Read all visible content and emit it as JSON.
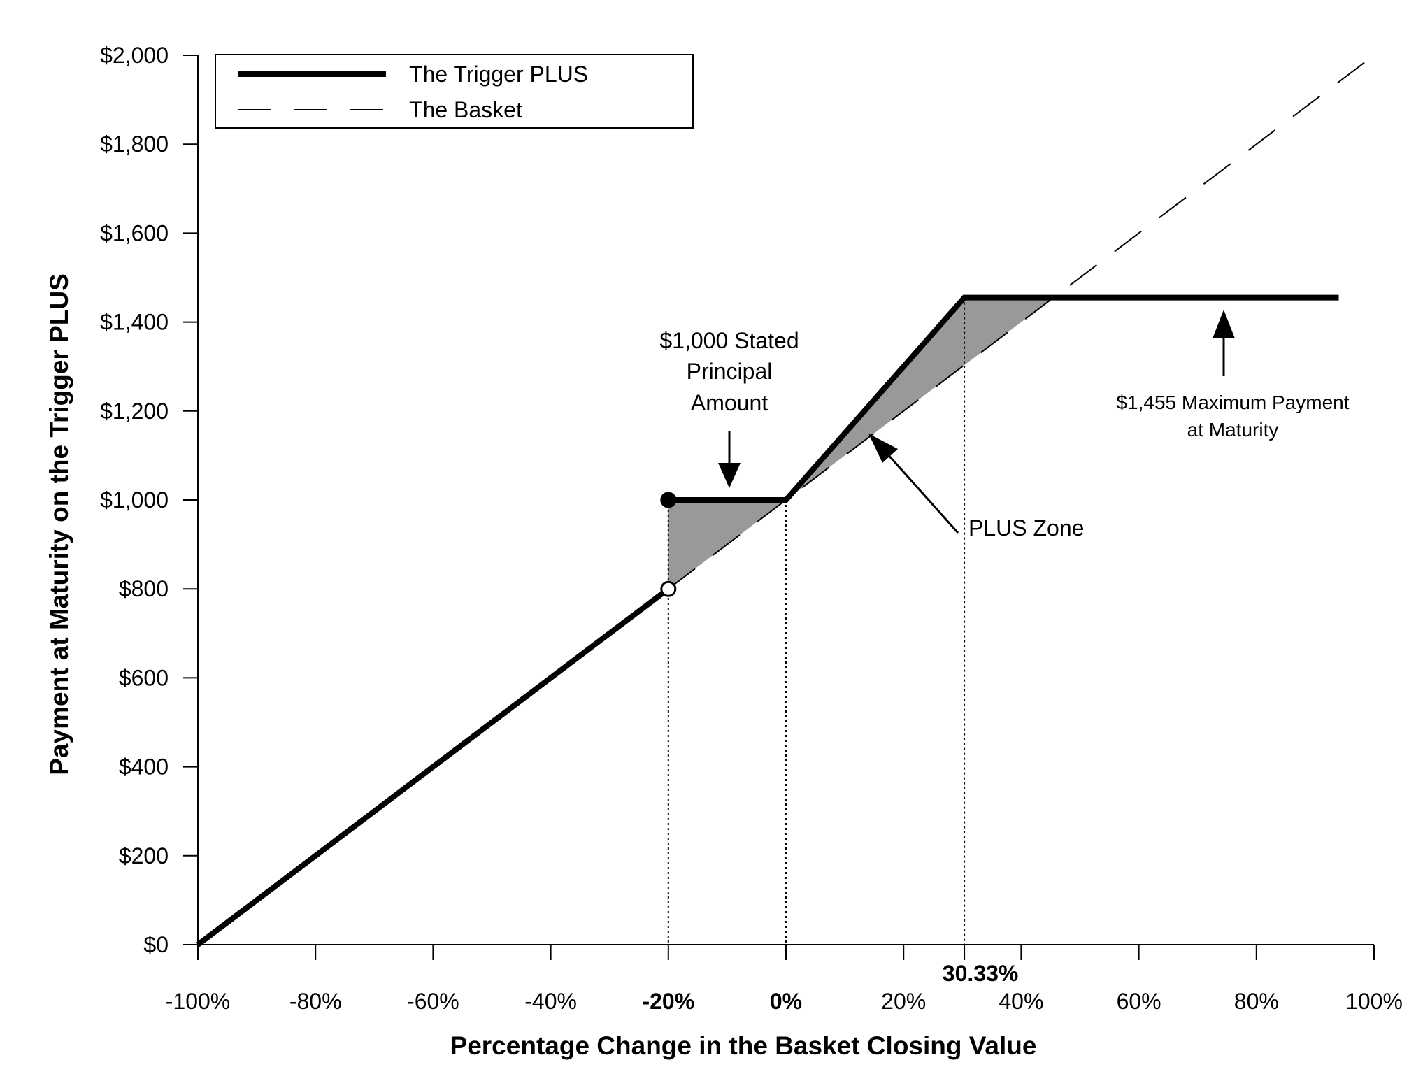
{
  "chart_data": {
    "type": "line",
    "xlabel": "Percentage Change in the Basket Closing Value",
    "ylabel": "Payment at Maturity on the Trigger PLUS",
    "xlim": [
      -100,
      100
    ],
    "ylim": [
      0,
      2000
    ],
    "x_ticks": [
      -100,
      -80,
      -60,
      -40,
      -20,
      0,
      20,
      40,
      60,
      80,
      100
    ],
    "x_minor_ticks": [
      30.33
    ],
    "x_tick_labels": [
      {
        "value": -100,
        "label": "-100%",
        "bold": false
      },
      {
        "value": -80,
        "label": "-80%",
        "bold": false
      },
      {
        "value": -60,
        "label": "-60%",
        "bold": false
      },
      {
        "value": -40,
        "label": "-40%",
        "bold": false
      },
      {
        "value": -20,
        "label": "-20%",
        "bold": true
      },
      {
        "value": 0,
        "label": "0%",
        "bold": true
      },
      {
        "value": 20,
        "label": "20%",
        "bold": false
      },
      {
        "value": 40,
        "label": "40%",
        "bold": false
      },
      {
        "value": 60,
        "label": "60%",
        "bold": false
      },
      {
        "value": 80,
        "label": "80%",
        "bold": false
      },
      {
        "value": 100,
        "label": "100%",
        "bold": false
      }
    ],
    "extra_x_label": {
      "value": 30.33,
      "label": "30.33%"
    },
    "y_ticks": [
      0,
      200,
      400,
      600,
      800,
      1000,
      1200,
      1400,
      1600,
      1800,
      2000
    ],
    "y_tick_labels": [
      "$0",
      "$200",
      "$400",
      "$600",
      "$800",
      "$1,000",
      "$1,200",
      "$1,400",
      "$1,600",
      "$1,800",
      "$2,000"
    ],
    "legend_position": "top-left",
    "grid": false,
    "series": [
      {
        "name": "The Trigger PLUS",
        "style": "solid-thick",
        "segments": [
          {
            "x": [
              -100,
              -20
            ],
            "y": [
              0,
              800
            ]
          },
          {
            "x": [
              -20,
              0,
              30.33,
              94
            ],
            "y": [
              1000,
              1000,
              1455,
              1455
            ]
          }
        ]
      },
      {
        "name": "The Basket",
        "style": "dashed",
        "segments": [
          {
            "x": [
              -20,
              100
            ],
            "y": [
              800,
              2000
            ]
          }
        ]
      }
    ],
    "markers": [
      {
        "x": -20,
        "y": 1000,
        "fill": "filled"
      },
      {
        "x": -20,
        "y": 800,
        "fill": "open"
      }
    ],
    "shaded_regions": [
      {
        "polygon": [
          [
            -20,
            1000
          ],
          [
            0,
            1000
          ],
          [
            0,
            1000
          ],
          [
            -20,
            800
          ]
        ]
      },
      {
        "polygon": [
          [
            0,
            1000
          ],
          [
            30.33,
            1455
          ],
          [
            45.5,
            1455
          ],
          [
            0,
            1000
          ]
        ]
      }
    ],
    "reference_lines": [
      {
        "x": -20,
        "y_top": 1000
      },
      {
        "x": 0,
        "y_top": 1000
      },
      {
        "x": 30.33,
        "y_top": 1455
      }
    ],
    "annotations": [
      {
        "lines": [
          "$1,000 Stated",
          "Principal",
          "Amount"
        ]
      },
      {
        "lines": [
          "PLUS Zone"
        ]
      },
      {
        "lines": [
          "$1,455 Maximum Payment",
          "at Maturity"
        ]
      }
    ],
    "colors": {
      "line": "#000000",
      "shade": "#999999",
      "background": "#ffffff"
    }
  }
}
